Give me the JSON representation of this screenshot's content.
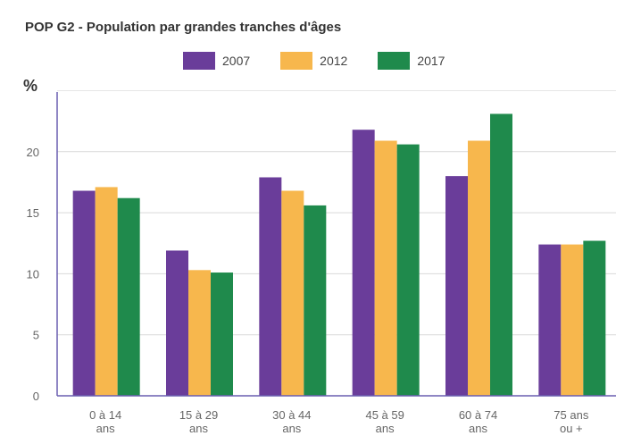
{
  "chart_data": {
    "type": "bar",
    "title": "POP G2 - Population par grandes tranches d'âges",
    "ylabel": "%",
    "xlabel": "",
    "categories": [
      [
        "0 à 14",
        "ans"
      ],
      [
        "15 à 29",
        "ans"
      ],
      [
        "30 à 44",
        "ans"
      ],
      [
        "45 à 59",
        "ans"
      ],
      [
        "60 à 74",
        "ans"
      ],
      [
        "75 ans",
        "ou +"
      ]
    ],
    "series": [
      {
        "name": "2007",
        "color": "#6a3d9a",
        "values": [
          16.8,
          11.9,
          17.9,
          21.8,
          18.0,
          12.4
        ]
      },
      {
        "name": "2012",
        "color": "#f7b74d",
        "values": [
          17.1,
          10.3,
          16.8,
          20.9,
          20.9,
          12.4
        ]
      },
      {
        "name": "2017",
        "color": "#1f8a4c",
        "values": [
          16.2,
          10.1,
          15.6,
          20.6,
          23.1,
          12.7
        ]
      }
    ],
    "yticks": [
      0,
      5,
      10,
      15,
      20
    ],
    "ylim": [
      0,
      25
    ],
    "grid": true,
    "legend_position": "top-center"
  }
}
